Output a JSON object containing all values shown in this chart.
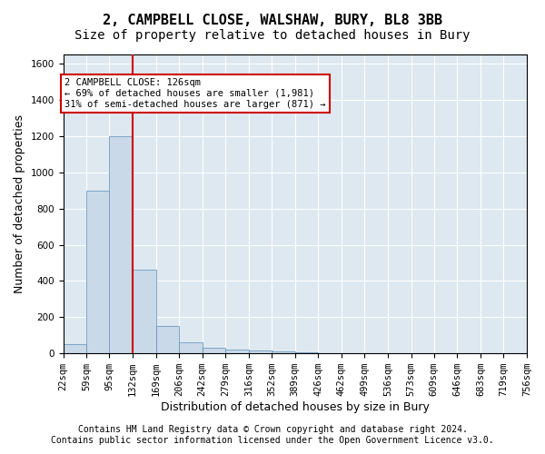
{
  "title_line1": "2, CAMPBELL CLOSE, WALSHAW, BURY, BL8 3BB",
  "title_line2": "Size of property relative to detached houses in Bury",
  "xlabel": "Distribution of detached houses by size in Bury",
  "ylabel": "Number of detached properties",
  "bar_color": "#c9d9e8",
  "bar_edge_color": "#5b8db8",
  "annotation_line_color": "#cc0000",
  "annotation_box_edge_color": "#cc0000",
  "property_size": 126,
  "property_label": "2 CAMPBELL CLOSE: 126sqm",
  "annotation_line1": "← 69% of detached houses are smaller (1,981)",
  "annotation_line2": "31% of semi-detached houses are larger (871) →",
  "bin_edges": [
    22,
    59,
    95,
    132,
    169,
    206,
    242,
    279,
    316,
    352,
    389,
    426,
    462,
    499,
    536,
    573,
    609,
    646,
    683,
    719,
    756
  ],
  "bin_labels": [
    "22sqm",
    "59sqm",
    "95sqm",
    "132sqm",
    "169sqm",
    "206sqm",
    "242sqm",
    "279sqm",
    "316sqm",
    "352sqm",
    "389sqm",
    "426sqm",
    "462sqm",
    "499sqm",
    "536sqm",
    "573sqm",
    "609sqm",
    "646sqm",
    "683sqm",
    "719sqm",
    "756sqm"
  ],
  "bar_heights": [
    50,
    900,
    1200,
    460,
    150,
    60,
    30,
    20,
    15,
    10,
    5,
    3,
    2,
    1,
    1,
    1,
    0,
    0,
    0,
    0
  ],
  "ylim": [
    0,
    1650
  ],
  "yticks": [
    0,
    200,
    400,
    600,
    800,
    1000,
    1200,
    1400,
    1600
  ],
  "background_color": "#dde8f0",
  "plot_background_color": "#dde8f0",
  "footer_line1": "Contains HM Land Registry data © Crown copyright and database right 2024.",
  "footer_line2": "Contains public sector information licensed under the Open Government Licence v3.0.",
  "title_fontsize": 11,
  "subtitle_fontsize": 10,
  "axis_label_fontsize": 9,
  "tick_fontsize": 7.5,
  "footer_fontsize": 7
}
